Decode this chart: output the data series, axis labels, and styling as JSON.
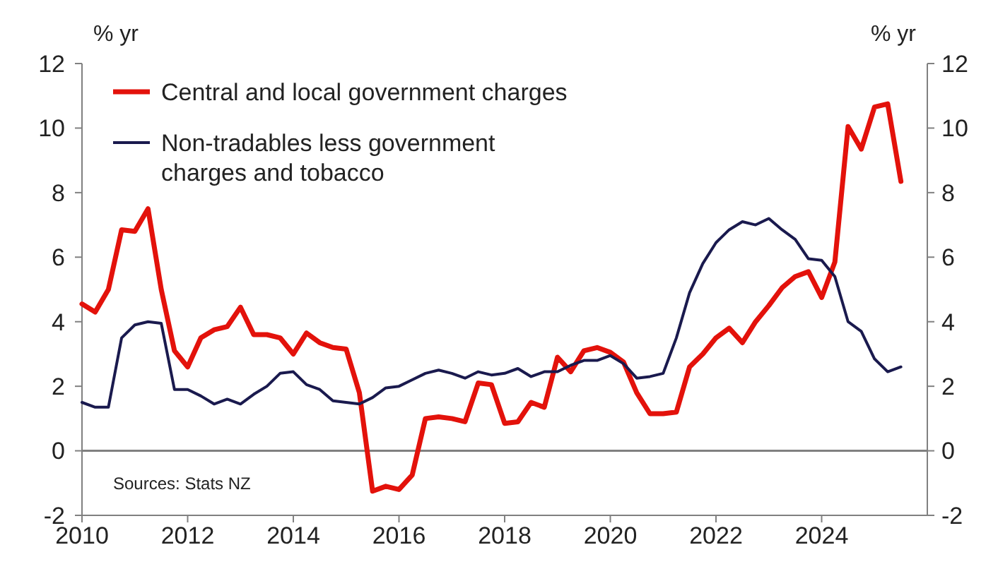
{
  "chart_data": {
    "type": "line",
    "ylabel": "% yr",
    "y2label": "% yr",
    "xlim": [
      2010,
      2026
    ],
    "xticks": [
      2010,
      2012,
      2014,
      2016,
      2018,
      2020,
      2022,
      2024
    ],
    "ylim": [
      -2,
      12
    ],
    "yticks": [
      -2,
      0,
      2,
      4,
      6,
      8,
      10,
      12
    ],
    "y2lim": [
      -2,
      12
    ],
    "y2ticks": [
      -2,
      0,
      2,
      4,
      6,
      8,
      10,
      12
    ],
    "grid": false,
    "legend": "top left",
    "marker": "none",
    "line_style": "solid",
    "ref_lines": [
      {
        "axis": "y",
        "value": 0,
        "color": "#808080"
      }
    ],
    "annotations": [
      "Sources: Stats NZ"
    ],
    "series": [
      {
        "name": "Central and local government charges",
        "color": "#e3120b",
        "x": [
          2010,
          2010.25,
          2010.5,
          2010.75,
          2011,
          2011.25,
          2011.5,
          2011.75,
          2012,
          2012.25,
          2012.5,
          2012.75,
          2013,
          2013.25,
          2013.5,
          2013.75,
          2014,
          2014.25,
          2014.5,
          2014.75,
          2015,
          2015.25,
          2015.5,
          2015.75,
          2016,
          2016.25,
          2016.5,
          2016.75,
          2017,
          2017.25,
          2017.5,
          2017.75,
          2018,
          2018.25,
          2018.5,
          2018.75,
          2019,
          2019.25,
          2019.5,
          2019.75,
          2020,
          2020.25,
          2020.5,
          2020.75,
          2021,
          2021.25,
          2021.5,
          2021.75,
          2022,
          2022.25,
          2022.5,
          2022.75,
          2023,
          2023.25,
          2023.5,
          2023.75,
          2024,
          2024.25,
          2024.5,
          2024.75,
          2025,
          2025.25,
          2025.5
        ],
        "values": [
          4.55,
          4.3,
          5.0,
          6.85,
          6.8,
          7.5,
          5.0,
          3.1,
          2.6,
          3.5,
          3.75,
          3.85,
          4.45,
          3.6,
          3.6,
          3.5,
          3.0,
          3.65,
          3.35,
          3.2,
          3.15,
          1.8,
          -1.25,
          -1.1,
          -1.2,
          -0.75,
          1.0,
          1.05,
          1.0,
          0.9,
          2.1,
          2.05,
          0.85,
          0.9,
          1.5,
          1.35,
          2.9,
          2.45,
          3.1,
          3.2,
          3.05,
          2.75,
          1.8,
          1.15,
          1.15,
          1.2,
          2.6,
          3.0,
          3.5,
          3.8,
          3.35,
          4.0,
          4.5,
          5.05,
          5.4,
          5.55,
          4.75,
          5.85,
          10.05,
          9.35,
          10.65,
          10.75,
          8.35
        ]
      },
      {
        "name": "Non-tradables less government charges and tobacco",
        "color": "#1a1a4e",
        "x": [
          2010,
          2010.25,
          2010.5,
          2010.75,
          2011,
          2011.25,
          2011.5,
          2011.75,
          2012,
          2012.25,
          2012.5,
          2012.75,
          2013,
          2013.25,
          2013.5,
          2013.75,
          2014,
          2014.25,
          2014.5,
          2014.75,
          2015,
          2015.25,
          2015.5,
          2015.75,
          2016,
          2016.25,
          2016.5,
          2016.75,
          2017,
          2017.25,
          2017.5,
          2017.75,
          2018,
          2018.25,
          2018.5,
          2018.75,
          2019,
          2019.25,
          2019.5,
          2019.75,
          2020,
          2020.25,
          2020.5,
          2020.75,
          2021,
          2021.25,
          2021.5,
          2021.75,
          2022,
          2022.25,
          2022.5,
          2022.75,
          2023,
          2023.25,
          2023.5,
          2023.75,
          2024,
          2024.25,
          2024.5,
          2024.75,
          2025,
          2025.25,
          2025.5
        ],
        "values": [
          1.5,
          1.35,
          1.35,
          3.5,
          3.9,
          4.0,
          3.95,
          1.9,
          1.9,
          1.7,
          1.45,
          1.6,
          1.45,
          1.75,
          2.0,
          2.4,
          2.45,
          2.05,
          1.9,
          1.55,
          1.5,
          1.45,
          1.65,
          1.95,
          2.0,
          2.2,
          2.4,
          2.5,
          2.4,
          2.25,
          2.45,
          2.35,
          2.4,
          2.55,
          2.3,
          2.45,
          2.45,
          2.65,
          2.8,
          2.8,
          2.95,
          2.7,
          2.25,
          2.3,
          2.4,
          3.5,
          4.9,
          5.8,
          6.45,
          6.85,
          7.1,
          7.0,
          7.2,
          6.85,
          6.55,
          5.95,
          5.9,
          5.4,
          4.0,
          3.7,
          2.85,
          2.45,
          2.6
        ]
      }
    ]
  }
}
